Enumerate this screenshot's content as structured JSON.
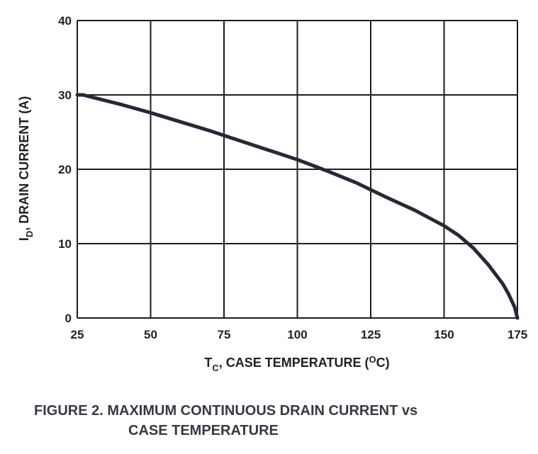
{
  "chart_data": {
    "type": "line",
    "xlabel": {
      "main": "T",
      "sub": "C",
      "rest": ", CASE TEMPERATURE (",
      "sup": "O",
      "unit": "C)"
    },
    "ylabel": {
      "main": "I",
      "sub": "D",
      "rest": ", DRAIN CURRENT (A)"
    },
    "xlim": [
      25,
      175
    ],
    "ylim": [
      0,
      40
    ],
    "xticks": [
      25,
      50,
      75,
      100,
      125,
      150,
      175
    ],
    "yticks": [
      0,
      10,
      20,
      30,
      40
    ],
    "grid": true,
    "colors": {
      "line": "#2e2536",
      "grid": "#1f1a22",
      "text": "#231f20"
    },
    "series": [
      {
        "x": [
          25,
          27,
          30,
          40,
          50,
          60,
          70,
          80,
          90,
          100,
          110,
          120,
          130,
          140,
          150,
          155,
          160,
          165,
          170,
          172,
          174,
          175
        ],
        "y": [
          30,
          30,
          29.7,
          28.7,
          27.6,
          26.4,
          25.2,
          23.9,
          22.6,
          21.3,
          19.8,
          18.2,
          16.3,
          14.5,
          12.4,
          11.1,
          9.4,
          7.2,
          4.6,
          3.2,
          1.5,
          0
        ]
      }
    ]
  },
  "caption": {
    "line1": "FIGURE 2.  MAXIMUM CONTINUOUS DRAIN CURRENT vs",
    "line2": "CASE TEMPERATURE"
  }
}
